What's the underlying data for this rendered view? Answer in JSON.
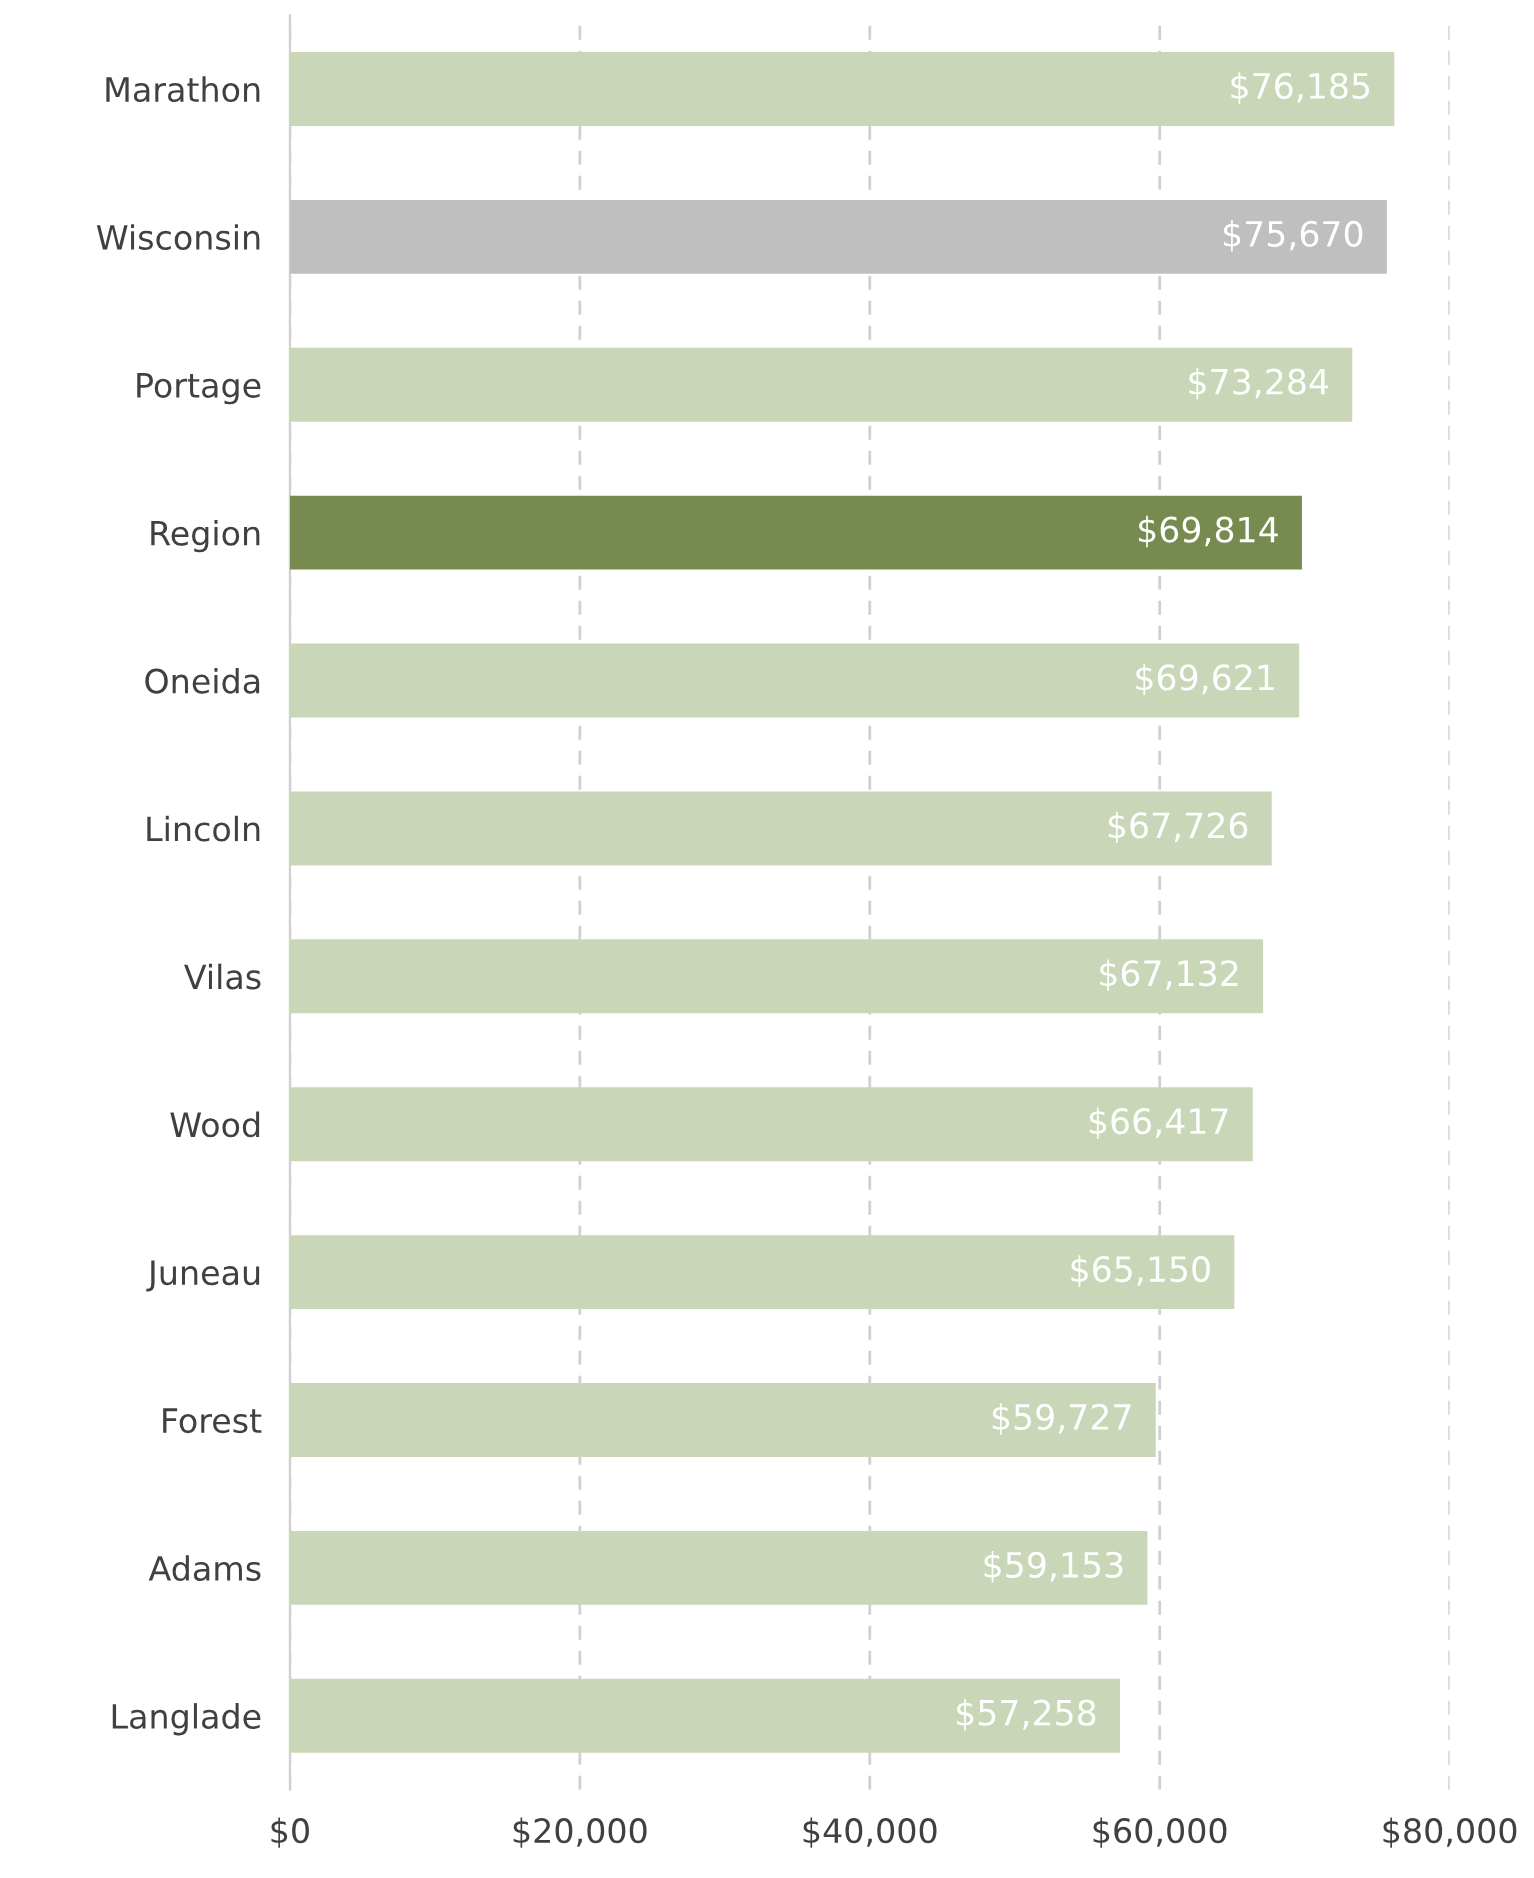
{
  "chart_data": {
    "type": "bar",
    "orientation": "horizontal",
    "categories": [
      "Marathon",
      "Wisconsin",
      "Portage",
      "Region",
      "Oneida",
      "Lincoln",
      "Vilas",
      "Wood",
      "Juneau",
      "Forest",
      "Adams",
      "Langlade"
    ],
    "values": [
      76185,
      75670,
      73284,
      69814,
      69621,
      67726,
      67132,
      66417,
      65150,
      59727,
      59153,
      57258
    ],
    "colors": [
      "#c9d7b8",
      "#bfbfbf",
      "#c9d7b8",
      "#778b51",
      "#c9d7b8",
      "#c9d7b8",
      "#c9d7b8",
      "#c9d7b8",
      "#c9d7b8",
      "#c9d7b8",
      "#c9d7b8",
      "#c9d7b8"
    ],
    "value_labels": [
      "$76,185",
      "$75,670",
      "$73,284",
      "$69,814",
      "$69,621",
      "$67,726",
      "$67,132",
      "$66,417",
      "$65,150",
      "$59,727",
      "$59,153",
      "$57,258"
    ],
    "xlim": [
      0,
      80000
    ],
    "xticks": [
      {
        "value": 0,
        "label": "$0"
      },
      {
        "value": 20000,
        "label": "$20,000"
      },
      {
        "value": 40000,
        "label": "$40,000"
      },
      {
        "value": 60000,
        "label": "$60,000"
      },
      {
        "value": 80000,
        "label": "$80,000"
      }
    ],
    "grid": "x",
    "legend": false
  }
}
